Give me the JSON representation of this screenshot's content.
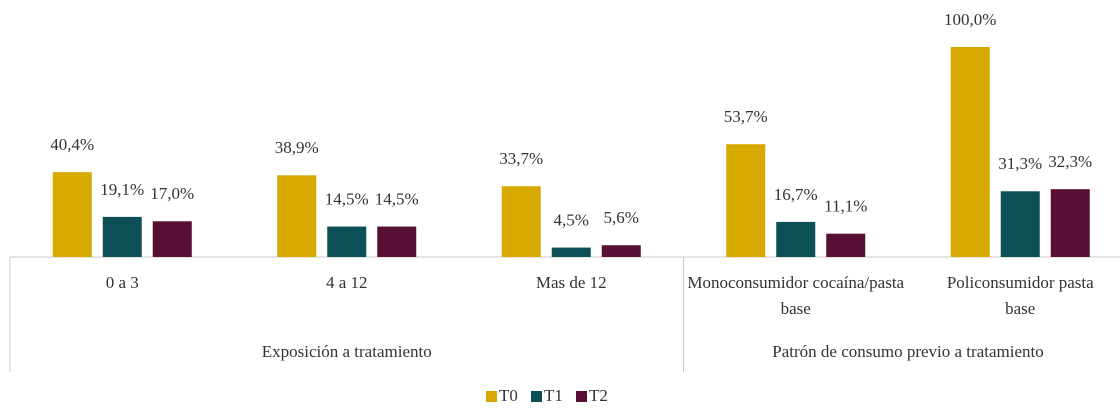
{
  "chart_data": {
    "type": "bar",
    "categories": [
      "0 a 3",
      "4 a 12",
      "Mas de 12",
      "Monoconsumidor cocaína/pasta base",
      "Policonsumidor pasta base"
    ],
    "category_groups": [
      {
        "label": "Exposición a tratamiento",
        "count": 3
      },
      {
        "label": "Patrón de consumo previo a tratamiento",
        "count": 2
      }
    ],
    "series": [
      {
        "name": "T0",
        "color": "#d6a800",
        "values": [
          40.4,
          38.9,
          33.7,
          53.7,
          100.0
        ],
        "value_labels": [
          "40,4%",
          "38,9%",
          "33,7%",
          "53,7%",
          "100,0%"
        ]
      },
      {
        "name": "T1",
        "color": "#0d4f57",
        "values": [
          19.1,
          14.5,
          4.5,
          16.7,
          31.3
        ],
        "value_labels": [
          "19,1%",
          "14,5%",
          "4,5%",
          "16,7%",
          "31,3%"
        ]
      },
      {
        "name": "T2",
        "color": "#570f34",
        "values": [
          17.0,
          14.5,
          5.6,
          11.1,
          32.3
        ],
        "value_labels": [
          "17,0%",
          "14,5%",
          "5,6%",
          "11,1%",
          "32,3%"
        ]
      }
    ],
    "ylim": [
      0,
      100
    ],
    "legend": "bottom"
  }
}
